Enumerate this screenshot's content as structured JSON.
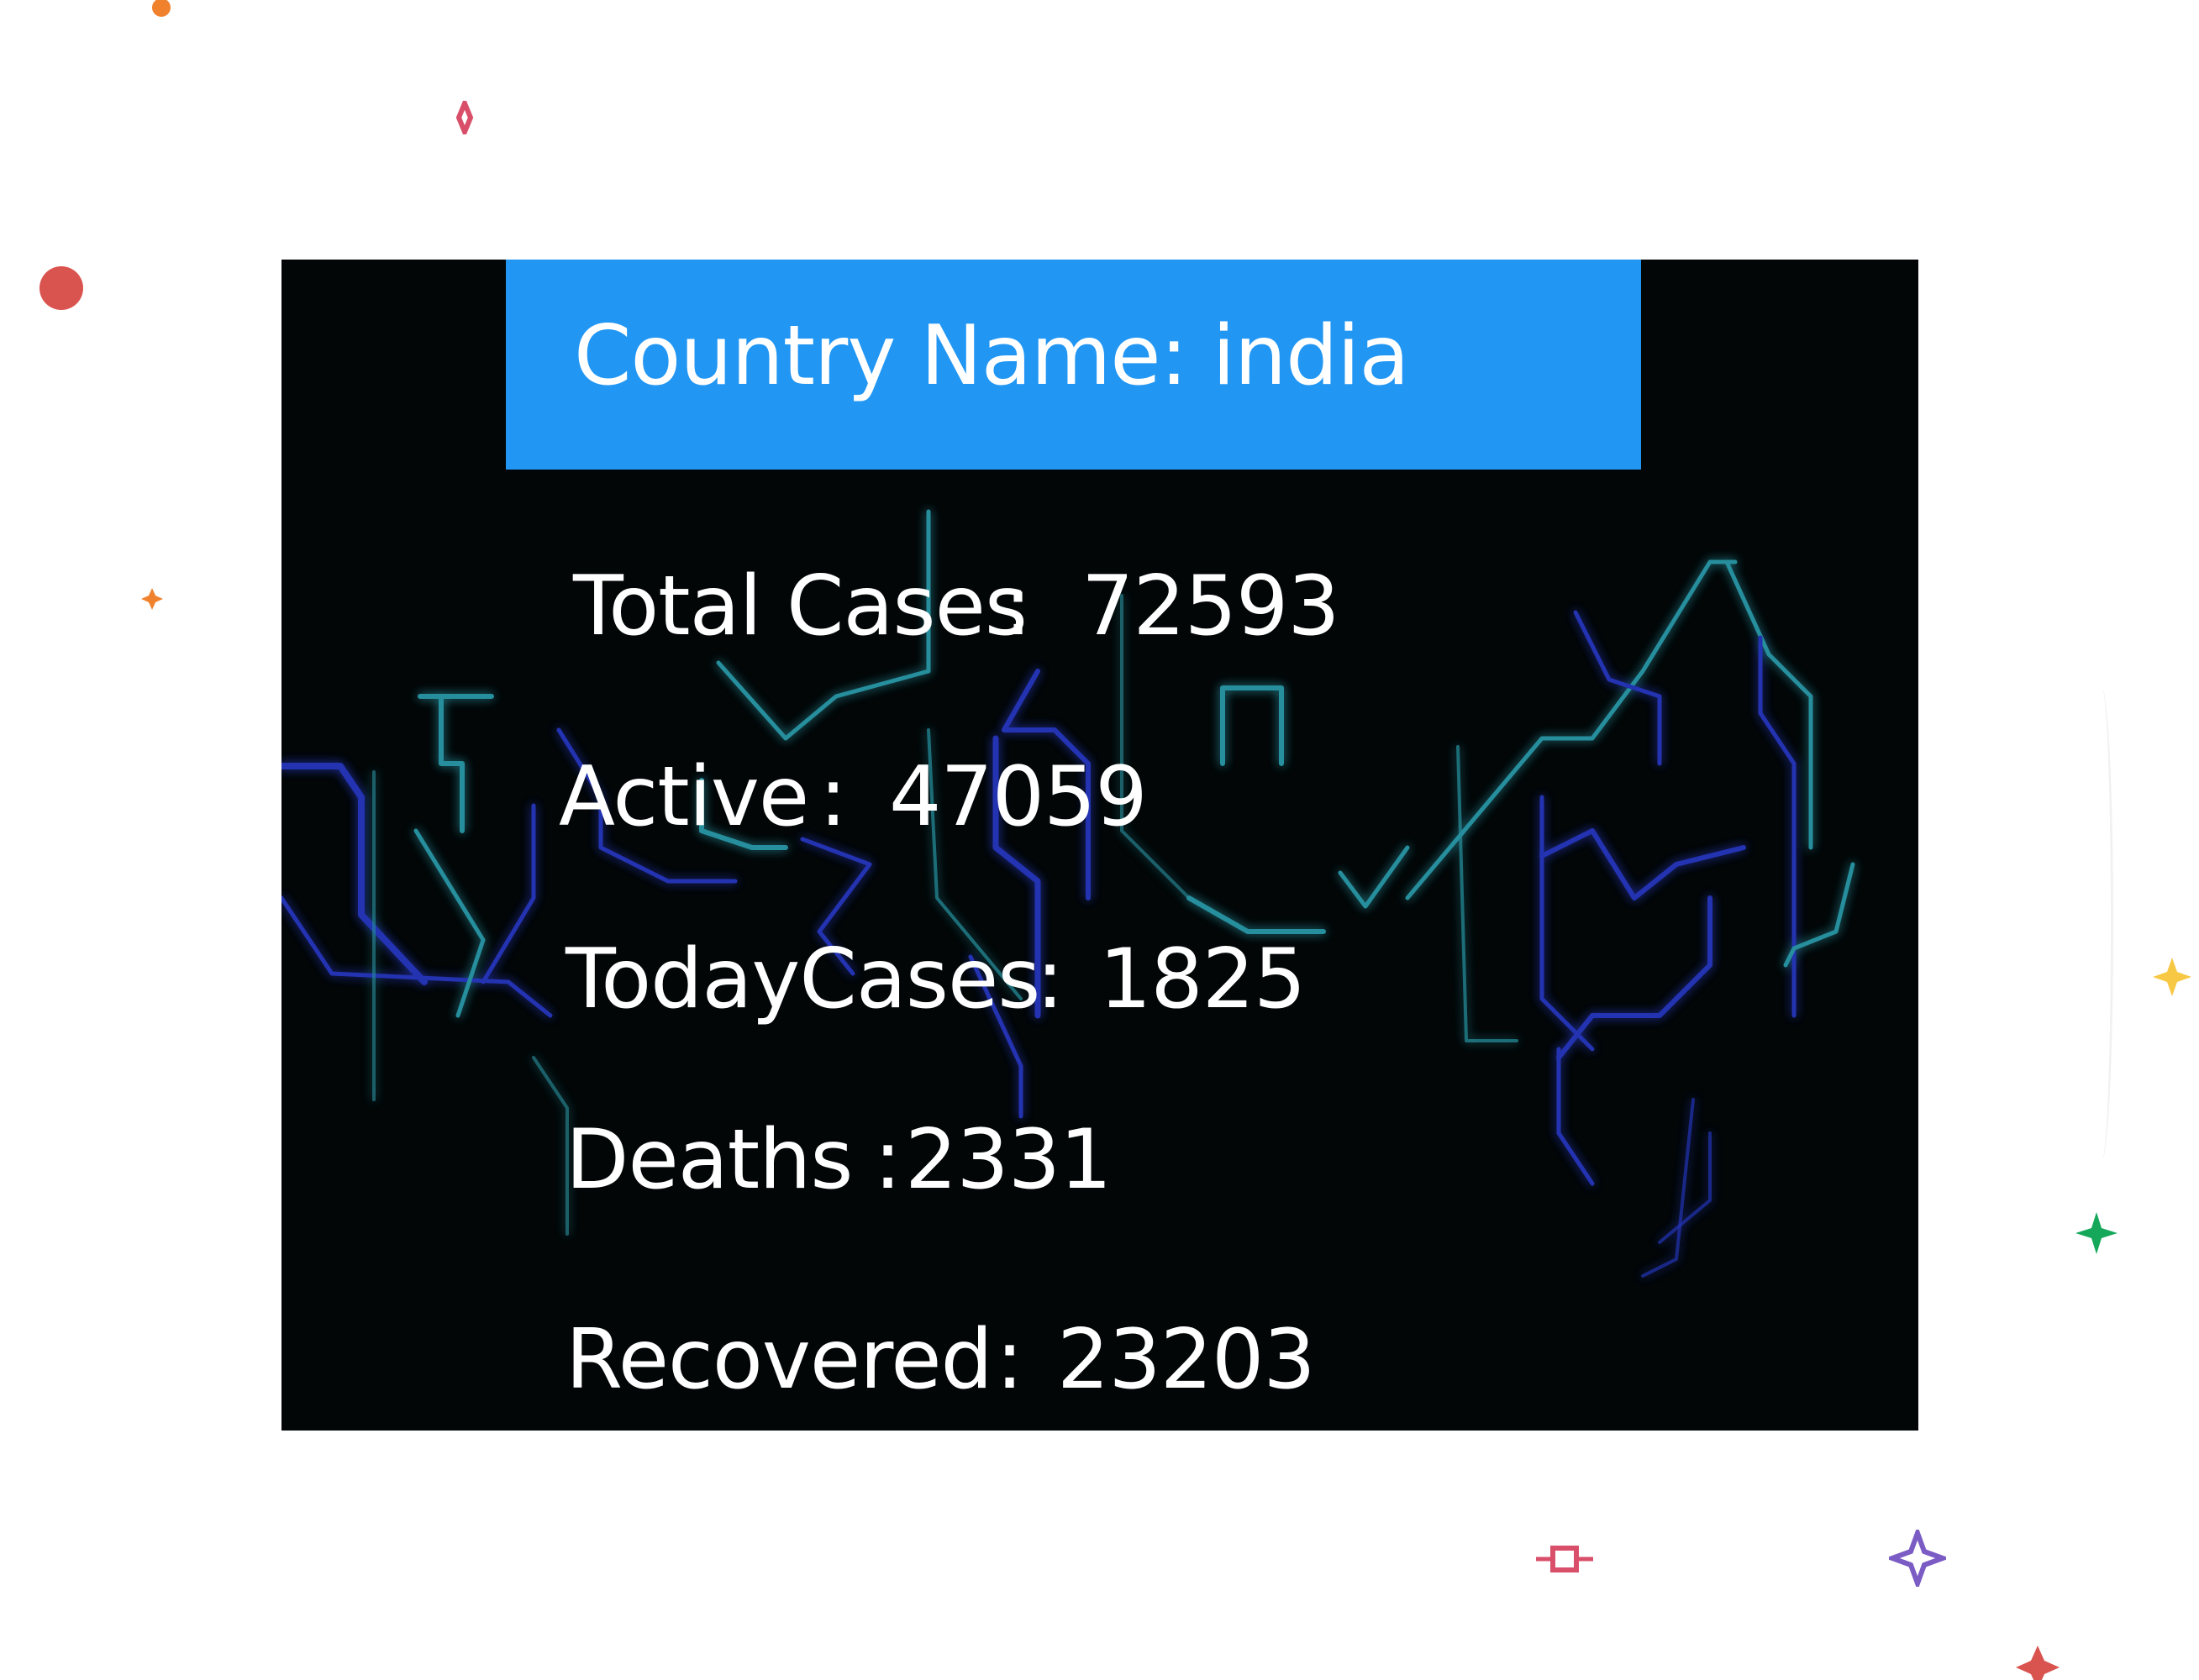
{
  "card": {
    "title": "Country Name: india",
    "header_color": "#2196f3",
    "background_color": "#020607"
  },
  "stats": {
    "total_cases": {
      "label": "Total Cases",
      "separator": ":",
      "value": "72593"
    },
    "active": {
      "label": "Active",
      "separator": ":",
      "value": "47059"
    },
    "today_cases": {
      "label": "TodayCases",
      "separator": ":",
      "value": "1825"
    },
    "deaths": {
      "label": "Deaths",
      "separator": ":",
      "value": "2331"
    },
    "recovered": {
      "label": "Recovered",
      "separator": ":",
      "value": "23203"
    }
  },
  "decorations": {
    "colors": {
      "orange": "#f0822d",
      "pink": "#d94f6a",
      "red": "#d9534f",
      "yellow": "#f7c843",
      "green": "#15a85a",
      "purple": "#7b5cc4",
      "circuit_blue": "#2a3cd0",
      "circuit_cyan": "#2fa8b8"
    }
  }
}
